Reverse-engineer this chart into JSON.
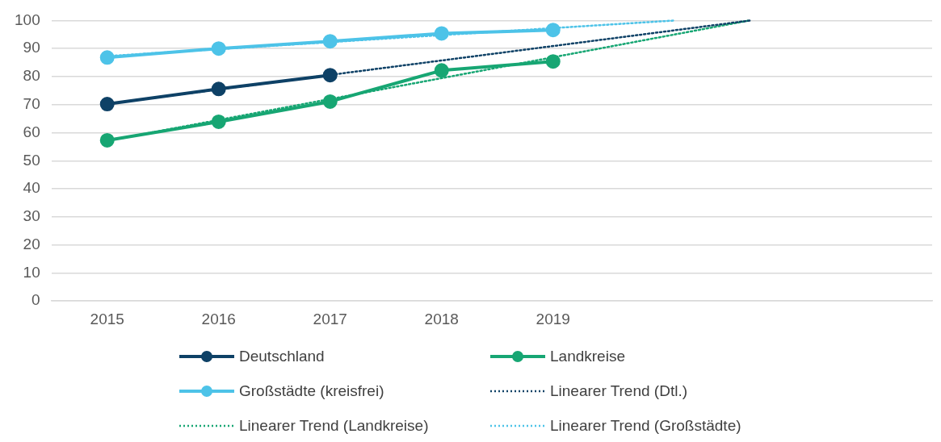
{
  "chart_data": {
    "type": "line",
    "x": [
      2015,
      2016,
      2017,
      2018,
      2019
    ],
    "xlim": [
      2014.5,
      2022.4
    ],
    "xticks": [
      2015,
      2016,
      2017,
      2018,
      2019
    ],
    "ylim": [
      0,
      100
    ],
    "yticks": [
      0,
      10,
      20,
      30,
      40,
      50,
      60,
      70,
      80,
      90,
      100
    ],
    "grid": "y",
    "legend": "bottom",
    "series": [
      {
        "name": "Deutschland",
        "type": "line",
        "color": "#0e4166",
        "marker": "circle",
        "line_style": "solid",
        "x": [
          2015,
          2016,
          2017
        ],
        "values": [
          70.2,
          75.6,
          80.5
        ]
      },
      {
        "name": "Landkreise",
        "type": "line",
        "color": "#17a673",
        "marker": "circle",
        "line_style": "solid",
        "values": [
          57.3,
          63.9,
          71.1,
          82.2,
          85.4
        ]
      },
      {
        "name": "Großstädte (kreisfrei)",
        "type": "line",
        "color": "#4dc3e8",
        "marker": "circle",
        "line_style": "solid",
        "values": [
          86.8,
          90.0,
          92.6,
          95.4,
          96.6
        ]
      },
      {
        "name": "Linearer Trend (Dtl.)",
        "type": "line",
        "color": "#0e4166",
        "marker": "none",
        "line_style": "dotted",
        "x": [
          2015,
          2020.77
        ],
        "values": [
          70.3,
          100
        ]
      },
      {
        "name": "Linearer Trend (Landkreise)",
        "type": "line",
        "color": "#17a673",
        "marker": "none",
        "line_style": "dotted",
        "x": [
          2015,
          2020.76
        ],
        "values": [
          57.1,
          100
        ]
      },
      {
        "name": "Linearer Trend (Großstädte)",
        "type": "line",
        "color": "#4dc3e8",
        "marker": "none",
        "line_style": "dotted",
        "x": [
          2015,
          2020.09
        ],
        "values": [
          87.3,
          100
        ]
      }
    ]
  }
}
